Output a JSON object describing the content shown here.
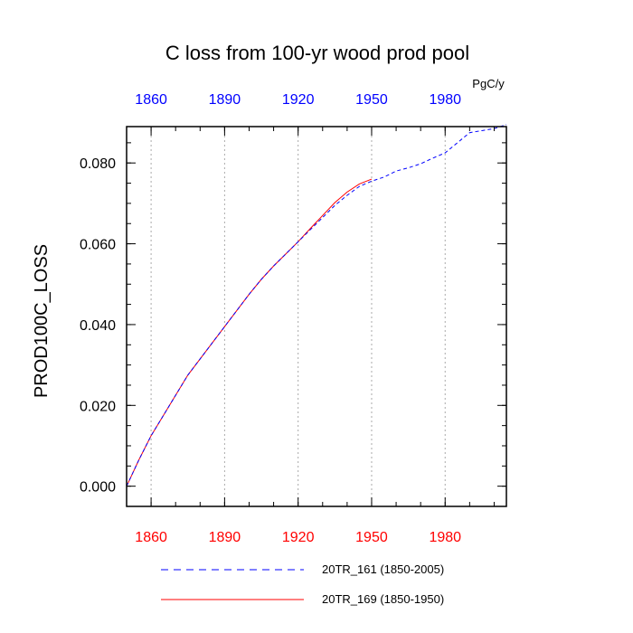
{
  "chart_data": {
    "type": "line",
    "title": "C loss from 100-yr wood prod pool",
    "ylabel": "PROD100C_LOSS",
    "units": "PgC/y",
    "xlim": [
      1850,
      2005
    ],
    "ylim": [
      -0.005,
      0.089
    ],
    "x_ticks": [
      1860,
      1890,
      1920,
      1950,
      1980
    ],
    "x_tick_labels": [
      "1860",
      "1890",
      "1920",
      "1950",
      "1980"
    ],
    "y_ticks": [
      0.0,
      0.02,
      0.04,
      0.06,
      0.08
    ],
    "y_tick_labels": [
      "0.000",
      "0.020",
      "0.040",
      "0.060",
      "0.080"
    ],
    "grid": "vertical dotted at x ticks",
    "legend_position": "bottom",
    "series": [
      {
        "name": "20TR_161 (1850-2005)",
        "color": "#0000ff",
        "style": "dashed",
        "x": [
          1850,
          1855,
          1860,
          1865,
          1870,
          1875,
          1880,
          1885,
          1890,
          1895,
          1900,
          1905,
          1910,
          1915,
          1920,
          1925,
          1930,
          1935,
          1940,
          1945,
          1950,
          1955,
          1960,
          1965,
          1970,
          1975,
          1980,
          1985,
          1990,
          1995,
          2000,
          2005
        ],
        "y": [
          0.0,
          0.0065,
          0.0125,
          0.0175,
          0.0225,
          0.0275,
          0.0315,
          0.0355,
          0.0395,
          0.0435,
          0.0475,
          0.0512,
          0.0545,
          0.0575,
          0.0605,
          0.0635,
          0.0665,
          0.0695,
          0.072,
          0.0742,
          0.0755,
          0.0765,
          0.078,
          0.0788,
          0.0798,
          0.0812,
          0.0825,
          0.085,
          0.0875,
          0.088,
          0.0885,
          0.0895
        ]
      },
      {
        "name": "20TR_169 (1850-1950)",
        "color": "#ff0000",
        "style": "solid",
        "x": [
          1850,
          1855,
          1860,
          1865,
          1870,
          1875,
          1880,
          1885,
          1890,
          1895,
          1900,
          1905,
          1910,
          1915,
          1920,
          1925,
          1930,
          1935,
          1940,
          1945,
          1950
        ],
        "y": [
          0.0,
          0.0065,
          0.0125,
          0.0175,
          0.0225,
          0.0275,
          0.0315,
          0.0355,
          0.0395,
          0.0435,
          0.0475,
          0.0512,
          0.0545,
          0.0575,
          0.0605,
          0.0638,
          0.067,
          0.0702,
          0.0728,
          0.0748,
          0.076
        ]
      }
    ]
  }
}
